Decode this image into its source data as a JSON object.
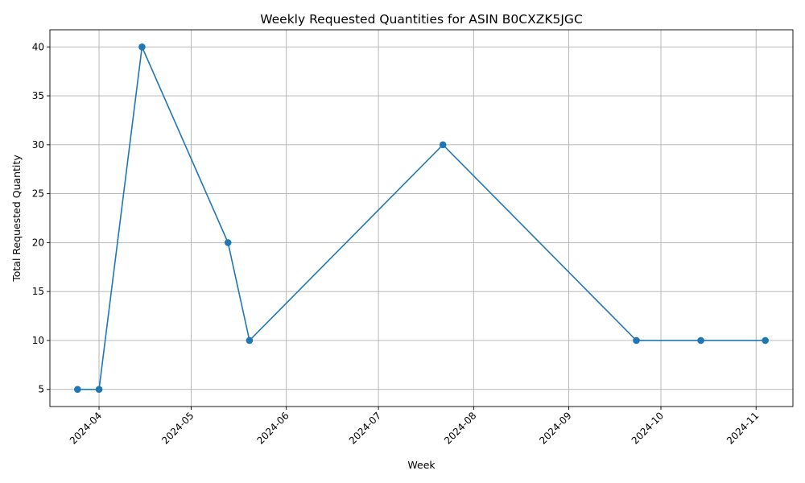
{
  "chart_data": {
    "type": "line",
    "title": "Weekly Requested Quantities for ASIN B0CXZK5JGC",
    "xlabel": "Week",
    "ylabel": "Total Requested Quantity",
    "x": [
      "2024-03-25",
      "2024-04-01",
      "2024-04-15",
      "2024-05-13",
      "2024-05-20",
      "2024-07-22",
      "2024-09-23",
      "2024-10-14",
      "2024-11-04"
    ],
    "series": [
      {
        "values": [
          5,
          5,
          40,
          20,
          10,
          30,
          10,
          10,
          10
        ]
      }
    ],
    "x_ticks": [
      "2024-04",
      "2024-05",
      "2024-06",
      "2024-07",
      "2024-08",
      "2024-09",
      "2024-10",
      "2024-11"
    ],
    "x_tick_dates": [
      "2024-04-01",
      "2024-05-01",
      "2024-06-01",
      "2024-07-01",
      "2024-08-01",
      "2024-09-01",
      "2024-10-01",
      "2024-11-01"
    ],
    "y_ticks": [
      5,
      10,
      15,
      20,
      25,
      30,
      35,
      40
    ],
    "xlim": [
      "2024-03-16",
      "2024-11-13"
    ],
    "ylim": [
      3.25,
      41.75
    ],
    "grid": true,
    "line_color": "#1f77b4",
    "marker": "circle"
  }
}
